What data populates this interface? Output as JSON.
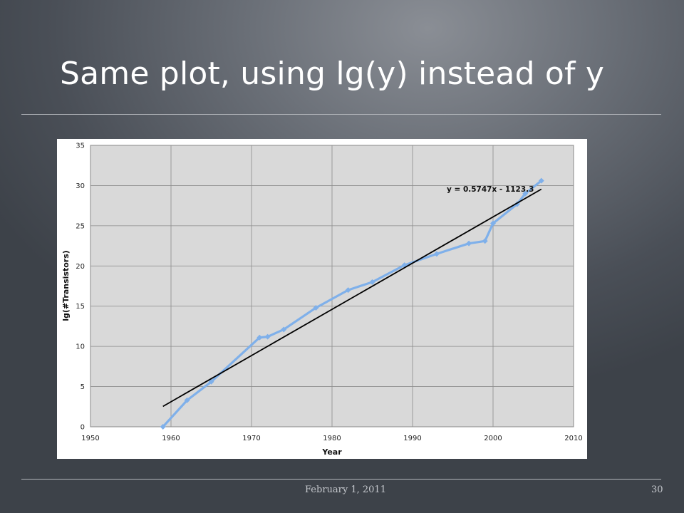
{
  "slide": {
    "title": "Same plot, using lg(y) instead of y",
    "footer_date": "February 1, 2011",
    "page_number": "30"
  },
  "chart_data": {
    "type": "line",
    "xlabel": "Year",
    "ylabel": "lg(#Transistors)",
    "xlim": [
      1950,
      2010
    ],
    "ylim": [
      0,
      35
    ],
    "xticks": [
      1950,
      1960,
      1970,
      1980,
      1990,
      2000,
      2010
    ],
    "yticks": [
      0,
      5,
      10,
      15,
      20,
      25,
      30,
      35
    ],
    "grid": true,
    "legend": "none",
    "series": [
      {
        "color": "#7fb0ea",
        "marker": "diamond",
        "points": [
          {
            "x": 1959,
            "y": 0
          },
          {
            "x": 1962,
            "y": 3.3
          },
          {
            "x": 1965,
            "y": 5.6
          },
          {
            "x": 1971,
            "y": 11.1
          },
          {
            "x": 1972,
            "y": 11.2
          },
          {
            "x": 1974,
            "y": 12.1
          },
          {
            "x": 1978,
            "y": 14.8
          },
          {
            "x": 1982,
            "y": 17.0
          },
          {
            "x": 1985,
            "y": 18.0
          },
          {
            "x": 1989,
            "y": 20.1
          },
          {
            "x": 1993,
            "y": 21.5
          },
          {
            "x": 1997,
            "y": 22.8
          },
          {
            "x": 1999,
            "y": 23.1
          },
          {
            "x": 2000,
            "y": 25.3
          },
          {
            "x": 2003,
            "y": 27.7
          },
          {
            "x": 2004,
            "y": 29.0
          },
          {
            "x": 2006,
            "y": 30.6
          }
        ]
      }
    ],
    "trendline": {
      "color": "#000000",
      "equation": "y = 0.5747x - 1123.3",
      "slope": 0.5747,
      "intercept": -1123.3,
      "x_start": 1959,
      "x_end": 2006
    }
  }
}
